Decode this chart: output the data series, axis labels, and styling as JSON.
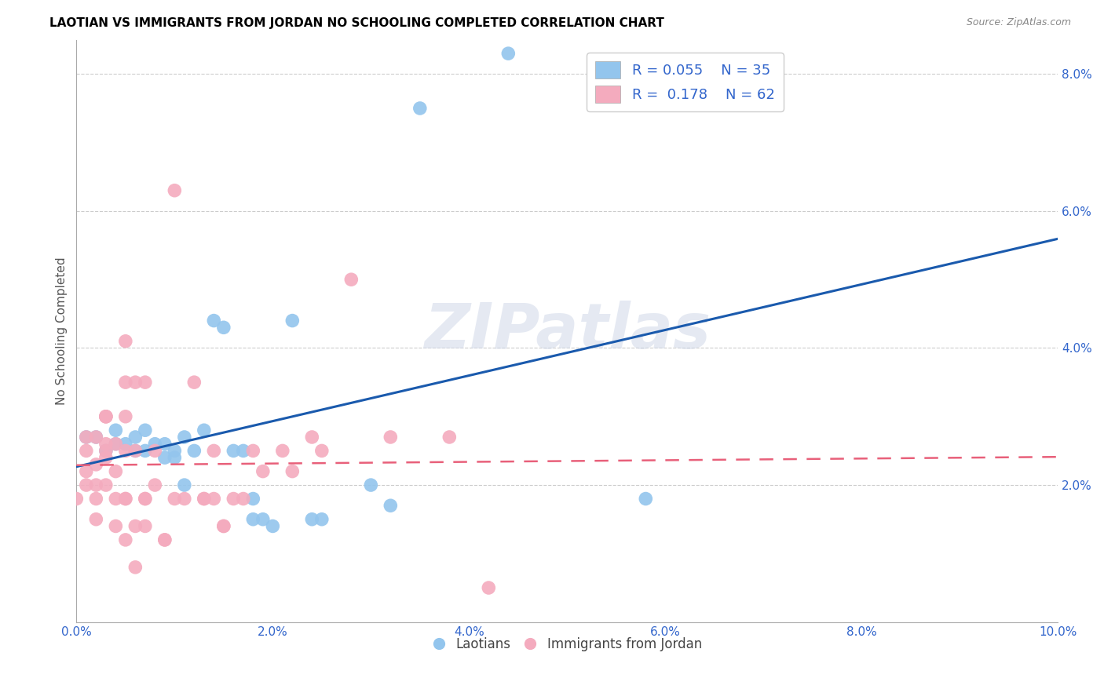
{
  "title": "LAOTIAN VS IMMIGRANTS FROM JORDAN NO SCHOOLING COMPLETED CORRELATION CHART",
  "source": "Source: ZipAtlas.com",
  "ylabel": "No Schooling Completed",
  "xlim": [
    0.0,
    0.1
  ],
  "ylim": [
    0.0,
    0.085
  ],
  "xticks": [
    0.0,
    0.02,
    0.04,
    0.06,
    0.08,
    0.1
  ],
  "yticks": [
    0.02,
    0.04,
    0.06,
    0.08
  ],
  "xtick_labels": [
    "0.0%",
    "2.0%",
    "4.0%",
    "6.0%",
    "8.0%",
    "10.0%"
  ],
  "ytick_labels": [
    "2.0%",
    "4.0%",
    "6.0%",
    "8.0%"
  ],
  "legend_r_blue": "R = 0.055",
  "legend_n_blue": "N = 35",
  "legend_r_pink": "R =  0.178",
  "legend_n_pink": "N = 62",
  "blue_color": "#93C5ED",
  "pink_color": "#F4ABBE",
  "blue_line_color": "#1A5AAD",
  "pink_line_color": "#E8607A",
  "watermark": "ZIPatlas",
  "blue_points": [
    [
      0.001,
      0.027
    ],
    [
      0.002,
      0.027
    ],
    [
      0.003,
      0.025
    ],
    [
      0.004,
      0.028
    ],
    [
      0.004,
      0.026
    ],
    [
      0.005,
      0.026
    ],
    [
      0.006,
      0.025
    ],
    [
      0.006,
      0.027
    ],
    [
      0.007,
      0.025
    ],
    [
      0.007,
      0.028
    ],
    [
      0.008,
      0.026
    ],
    [
      0.009,
      0.026
    ],
    [
      0.009,
      0.024
    ],
    [
      0.01,
      0.025
    ],
    [
      0.01,
      0.024
    ],
    [
      0.011,
      0.027
    ],
    [
      0.011,
      0.02
    ],
    [
      0.012,
      0.025
    ],
    [
      0.013,
      0.028
    ],
    [
      0.014,
      0.044
    ],
    [
      0.015,
      0.043
    ],
    [
      0.016,
      0.025
    ],
    [
      0.017,
      0.025
    ],
    [
      0.018,
      0.015
    ],
    [
      0.018,
      0.018
    ],
    [
      0.019,
      0.015
    ],
    [
      0.02,
      0.014
    ],
    [
      0.022,
      0.044
    ],
    [
      0.024,
      0.015
    ],
    [
      0.025,
      0.015
    ],
    [
      0.03,
      0.02
    ],
    [
      0.032,
      0.017
    ],
    [
      0.035,
      0.075
    ],
    [
      0.044,
      0.083
    ],
    [
      0.058,
      0.018
    ]
  ],
  "pink_points": [
    [
      0.0,
      0.018
    ],
    [
      0.001,
      0.025
    ],
    [
      0.001,
      0.02
    ],
    [
      0.001,
      0.027
    ],
    [
      0.001,
      0.022
    ],
    [
      0.002,
      0.027
    ],
    [
      0.002,
      0.023
    ],
    [
      0.002,
      0.02
    ],
    [
      0.002,
      0.018
    ],
    [
      0.002,
      0.015
    ],
    [
      0.003,
      0.03
    ],
    [
      0.003,
      0.03
    ],
    [
      0.003,
      0.026
    ],
    [
      0.003,
      0.024
    ],
    [
      0.003,
      0.03
    ],
    [
      0.003,
      0.025
    ],
    [
      0.003,
      0.02
    ],
    [
      0.004,
      0.026
    ],
    [
      0.004,
      0.022
    ],
    [
      0.004,
      0.018
    ],
    [
      0.004,
      0.014
    ],
    [
      0.005,
      0.041
    ],
    [
      0.005,
      0.03
    ],
    [
      0.005,
      0.018
    ],
    [
      0.005,
      0.012
    ],
    [
      0.005,
      0.035
    ],
    [
      0.005,
      0.025
    ],
    [
      0.005,
      0.018
    ],
    [
      0.006,
      0.014
    ],
    [
      0.006,
      0.008
    ],
    [
      0.006,
      0.035
    ],
    [
      0.006,
      0.025
    ],
    [
      0.007,
      0.018
    ],
    [
      0.007,
      0.035
    ],
    [
      0.007,
      0.018
    ],
    [
      0.007,
      0.014
    ],
    [
      0.008,
      0.025
    ],
    [
      0.008,
      0.02
    ],
    [
      0.009,
      0.012
    ],
    [
      0.009,
      0.012
    ],
    [
      0.01,
      0.063
    ],
    [
      0.01,
      0.018
    ],
    [
      0.011,
      0.018
    ],
    [
      0.012,
      0.035
    ],
    [
      0.013,
      0.018
    ],
    [
      0.013,
      0.018
    ],
    [
      0.014,
      0.025
    ],
    [
      0.014,
      0.018
    ],
    [
      0.015,
      0.014
    ],
    [
      0.015,
      0.014
    ],
    [
      0.016,
      0.018
    ],
    [
      0.017,
      0.018
    ],
    [
      0.018,
      0.025
    ],
    [
      0.019,
      0.022
    ],
    [
      0.021,
      0.025
    ],
    [
      0.022,
      0.022
    ],
    [
      0.024,
      0.027
    ],
    [
      0.025,
      0.025
    ],
    [
      0.028,
      0.05
    ],
    [
      0.032,
      0.027
    ],
    [
      0.038,
      0.027
    ],
    [
      0.042,
      0.005
    ]
  ]
}
